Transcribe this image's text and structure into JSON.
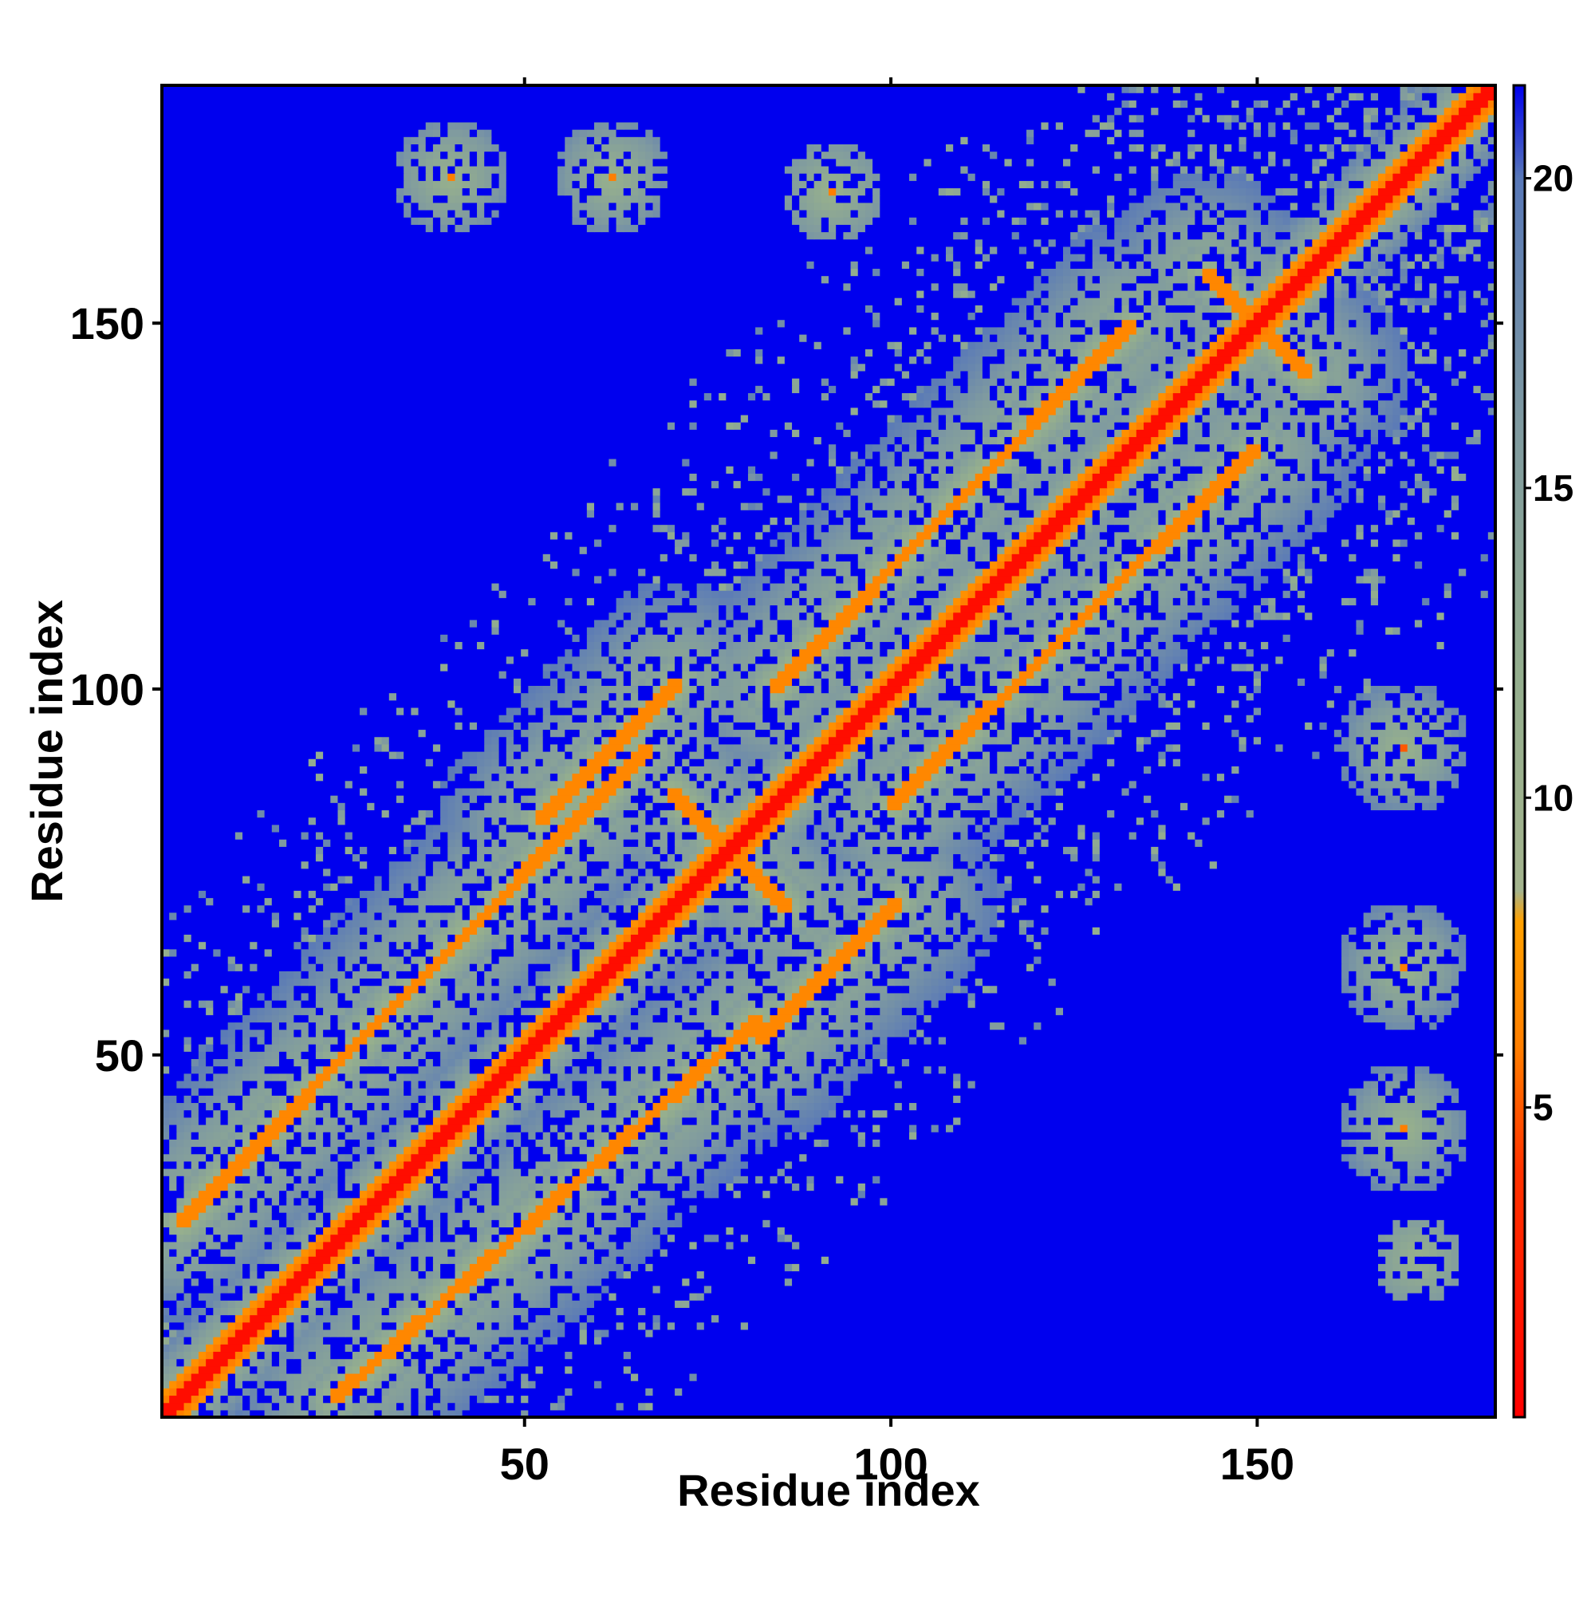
{
  "chart_data": {
    "type": "heatmap",
    "title": "",
    "xlabel": "Residue index",
    "ylabel": "Residue index",
    "n_residues": 182,
    "xlim": [
      1,
      182
    ],
    "ylim": [
      1,
      182
    ],
    "x_ticks": [
      50,
      100,
      150
    ],
    "y_ticks": [
      50,
      100,
      150
    ],
    "colorbar": {
      "range": [
        0,
        21.5
      ],
      "ticks": [
        5,
        10,
        15,
        20
      ],
      "stops": [
        {
          "value": 0,
          "color": "#ff0000"
        },
        {
          "value": 4,
          "color": "#ff3300"
        },
        {
          "value": 6,
          "color": "#ff7f00"
        },
        {
          "value": 8,
          "color": "#ffa000"
        },
        {
          "value": 8.5,
          "color": "#a4b48e"
        },
        {
          "value": 12,
          "color": "#94ae8e"
        },
        {
          "value": 16,
          "color": "#7f9aa0"
        },
        {
          "value": 20,
          "color": "#5878b8"
        },
        {
          "value": 21.5,
          "color": "#0000ee"
        }
      ]
    },
    "background_value": 21.5,
    "diagonal_value": 1.0,
    "contact_bands": [
      {
        "name": "helix-band-1",
        "from": [
          3,
          27
        ],
        "to": [
          67,
          92
        ],
        "value": 6.5
      },
      {
        "name": "helix-band-2",
        "from": [
          24,
          3
        ],
        "to": [
          82,
          55
        ],
        "value": 6.5
      },
      {
        "name": "helix-band-3",
        "from": [
          52,
          82
        ],
        "to": [
          71,
          101
        ],
        "value": 6.5
      },
      {
        "name": "helix-band-4",
        "from": [
          82,
          52
        ],
        "to": [
          101,
          71
        ],
        "value": 6.5
      },
      {
        "name": "helix-band-5",
        "from": [
          84,
          100
        ],
        "to": [
          133,
          150
        ],
        "value": 6.5
      },
      {
        "name": "helix-band-6",
        "from": [
          100,
          84
        ],
        "to": [
          150,
          133
        ],
        "value": 6.5
      },
      {
        "name": "cross-1",
        "from": [
          70,
          86
        ],
        "to": [
          86,
          70
        ],
        "value": 6.5
      },
      {
        "name": "cross-2",
        "from": [
          143,
          157
        ],
        "to": [
          157,
          143
        ],
        "value": 6.5
      }
    ],
    "clusters": [
      {
        "center": [
          40,
          170
        ],
        "radius": 8,
        "core": 6
      },
      {
        "center": [
          62,
          170
        ],
        "radius": 8,
        "core": 6
      },
      {
        "center": [
          92,
          168
        ],
        "radius": 7,
        "core": 6
      },
      {
        "center": [
          170,
          92
        ],
        "radius": 9,
        "core": 5
      },
      {
        "center": [
          170,
          62
        ],
        "radius": 9,
        "core": 6
      },
      {
        "center": [
          170,
          40
        ],
        "radius": 9,
        "core": 6
      },
      {
        "center": [
          172,
          22
        ],
        "radius": 6,
        "core": 14
      }
    ]
  }
}
